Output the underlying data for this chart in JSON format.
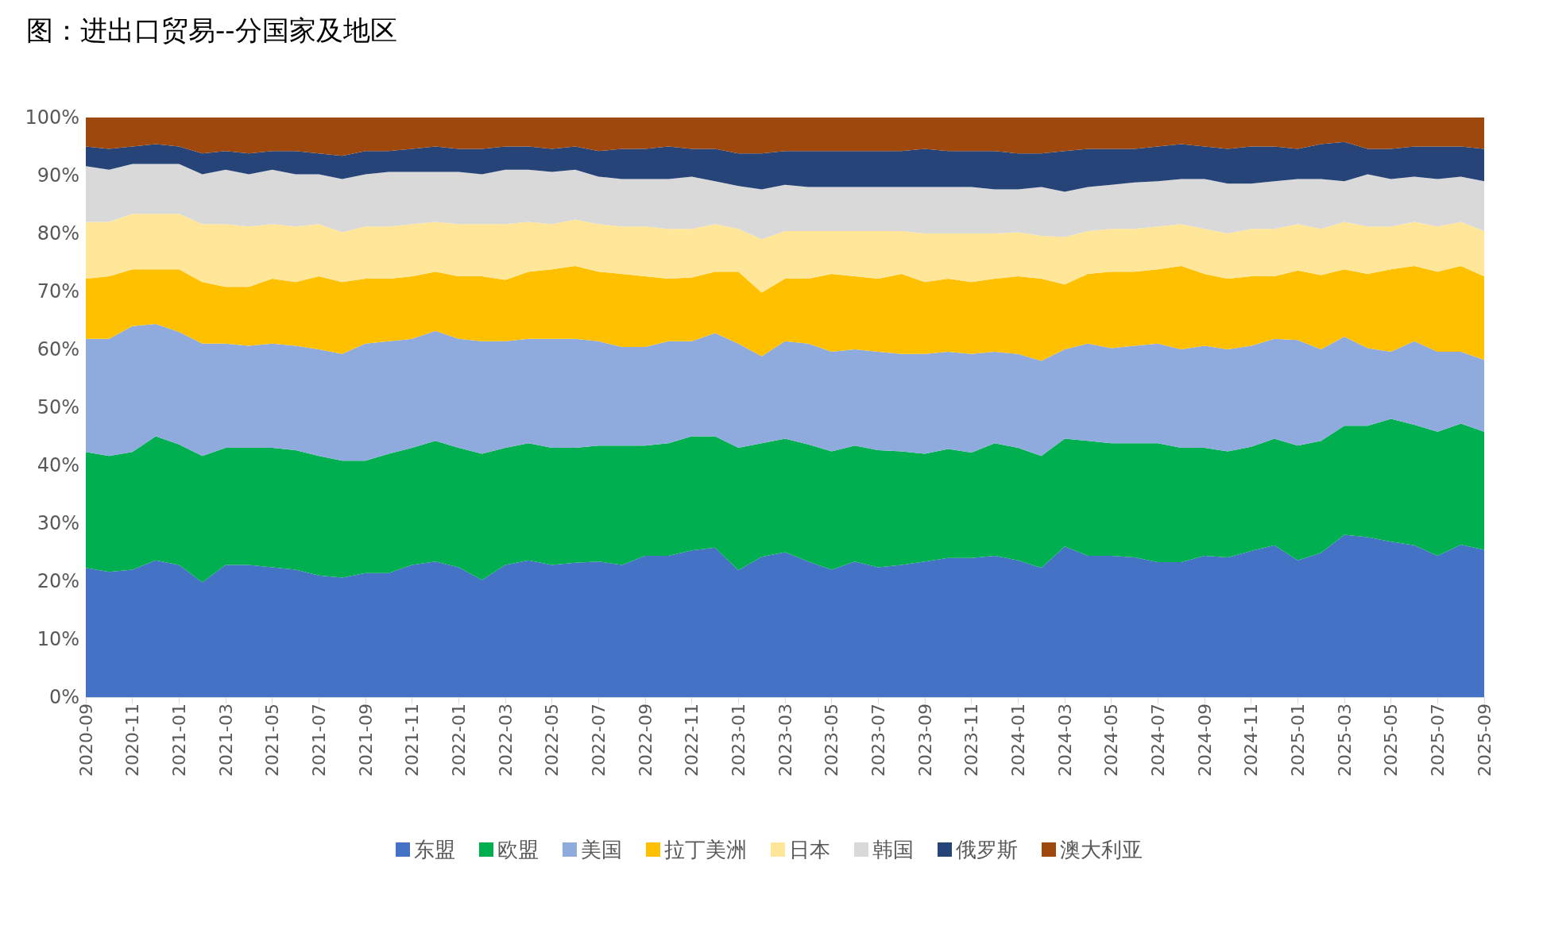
{
  "chart_data": {
    "type": "area",
    "title": "图：进出口贸易--分国家及地区",
    "stacked": true,
    "grid": false,
    "legend": "bottom",
    "categories": [
      "2020-09",
      null,
      "2020-11",
      null,
      "2021-01",
      null,
      "2021-03",
      null,
      "2021-05",
      null,
      "2021-07",
      null,
      "2021-09",
      null,
      "2021-11",
      null,
      "2022-01",
      null,
      "2022-03",
      null,
      "2022-05",
      null,
      "2022-07",
      null,
      "2022-09",
      null,
      "2022-11",
      null,
      "2023-01",
      null,
      "2023-03",
      null,
      "2023-05",
      null,
      "2023-07",
      null,
      "2023-09",
      null,
      "2023-11",
      null,
      "2024-01",
      null,
      "2024-03",
      null,
      "2024-05",
      null,
      "2024-07",
      null,
      "2024-09",
      null,
      "2024-11",
      null,
      "2025-01",
      null,
      "2025-03",
      null,
      "2025-05",
      null,
      "2025-07",
      null,
      "2025-09"
    ],
    "ylim": [
      0,
      100
    ],
    "yticks": [
      {
        "value": 0,
        "label": "0%"
      },
      {
        "value": 10,
        "label": "10%"
      },
      {
        "value": 20,
        "label": "20%"
      },
      {
        "value": 30,
        "label": "30%"
      },
      {
        "value": 40,
        "label": "40%"
      },
      {
        "value": 50,
        "label": "50%"
      },
      {
        "value": 60,
        "label": "60%"
      },
      {
        "value": 70,
        "label": "70%"
      },
      {
        "value": 80,
        "label": "80%"
      },
      {
        "value": 90,
        "label": "90%"
      },
      {
        "value": 100,
        "label": "100%"
      }
    ],
    "series": [
      {
        "name": "东盟",
        "color": "#4472c4",
        "values": [
          22.3,
          21.6,
          22,
          23.6,
          22.8,
          19.8,
          22.8,
          22.8,
          22.4,
          22,
          21,
          20.6,
          21.4,
          21.4,
          22.8,
          23.4,
          22.4,
          20.2,
          22.8,
          23.6,
          22.8,
          23.2,
          23.4,
          22.8,
          24.4,
          24.4,
          25.3,
          25.8,
          21.9,
          24.2,
          25,
          23.4,
          22,
          23.4,
          22.4,
          22.8,
          23.4,
          24,
          24,
          24.4,
          23.6,
          22.3,
          26,
          24.4,
          24.4,
          24.1,
          23.3,
          23.3,
          24.4,
          24.1,
          25.2,
          26.2,
          23.6,
          24.9,
          28,
          27.6,
          26.8,
          26.2,
          24.4,
          26.3,
          25.4
        ]
      },
      {
        "name": "欧盟",
        "color": "#00b050",
        "values": [
          20,
          20,
          20.3,
          21.4,
          20.8,
          21.8,
          20.2,
          20.2,
          20.6,
          20.6,
          20.6,
          20.2,
          19.4,
          20.6,
          20.2,
          20.8,
          20.6,
          21.8,
          20.2,
          20.2,
          20.2,
          19.8,
          20,
          20.6,
          19,
          19.4,
          19.7,
          19.2,
          21.1,
          19.6,
          19.6,
          20.2,
          20.4,
          20,
          20.2,
          19.6,
          18.6,
          18.8,
          18.2,
          19.4,
          19.4,
          19.3,
          18.6,
          19.8,
          19.4,
          19.7,
          20.5,
          19.7,
          18.6,
          18.3,
          18,
          18.4,
          19.8,
          19.3,
          18.8,
          19.2,
          21.2,
          20.8,
          21.4,
          20.9,
          20.4
        ]
      },
      {
        "name": "美国",
        "color": "#8faadc",
        "values": [
          19.5,
          20.2,
          21.7,
          19.4,
          19.4,
          19.4,
          18,
          17.6,
          18,
          18,
          18.4,
          18.4,
          20.2,
          19.4,
          18.8,
          19,
          18.8,
          19.4,
          18.4,
          18,
          18.8,
          18.8,
          18,
          17,
          17,
          17.6,
          16.4,
          17.8,
          18,
          15,
          16.8,
          17.4,
          17.2,
          16.6,
          17,
          16.8,
          17.2,
          16.8,
          17,
          15.8,
          16.2,
          16.4,
          15.4,
          16.8,
          16.4,
          16.8,
          17.2,
          17,
          17.6,
          17.6,
          17.4,
          17.2,
          18.2,
          15.8,
          15.4,
          13.4,
          11.6,
          14.4,
          13.8,
          12.4,
          12.4
        ]
      },
      {
        "name": "拉丁美洲",
        "color": "#ffc000",
        "values": [
          10.4,
          10.8,
          9.8,
          9.4,
          10.8,
          10.6,
          9.8,
          10.2,
          11.2,
          11,
          12.6,
          12.4,
          11.2,
          10.8,
          10.8,
          10.2,
          10.8,
          11.2,
          10.6,
          11.6,
          12,
          12.6,
          12,
          12.6,
          12.2,
          10.8,
          11,
          10.6,
          12.4,
          11,
          10.8,
          11.2,
          13.4,
          12.6,
          12.6,
          13.8,
          12.4,
          12.6,
          12.4,
          12.6,
          13.4,
          14.2,
          11.2,
          12,
          13.2,
          12.8,
          12.8,
          14.4,
          12.4,
          12.2,
          12,
          10.8,
          12,
          12.8,
          11.6,
          12.8,
          14.2,
          13,
          13.8,
          14.8,
          14.4
        ]
      },
      {
        "name": "日本",
        "color": "#ffe699",
        "values": [
          9.8,
          9.4,
          9.6,
          9.6,
          9.6,
          10,
          10.8,
          10.4,
          9.4,
          9.6,
          9,
          8.6,
          9,
          9,
          9,
          8.6,
          9,
          9,
          9.6,
          8.6,
          7.8,
          8,
          8.2,
          8.2,
          8.6,
          8.6,
          8.4,
          8.2,
          7.4,
          9.2,
          8.2,
          8.2,
          7.4,
          7.8,
          8.2,
          7.4,
          8.4,
          7.8,
          8.4,
          7.8,
          7.6,
          7.4,
          8.2,
          7.4,
          7.4,
          7.4,
          7.4,
          7.2,
          7.8,
          7.8,
          8.2,
          8.2,
          8,
          8,
          8.2,
          8.2,
          7.4,
          7.6,
          7.8,
          7.6,
          7.8
        ]
      },
      {
        "name": "韩国",
        "color": "#d9d9d9",
        "values": [
          9.6,
          9,
          8.6,
          8.6,
          8.6,
          8.6,
          9.4,
          9,
          9.4,
          9,
          8.6,
          9.2,
          9,
          9.4,
          9,
          8.6,
          9,
          8.6,
          9.4,
          9,
          9,
          8.6,
          8.2,
          8.2,
          8.2,
          8.6,
          9,
          7.4,
          7.4,
          8.6,
          8,
          7.6,
          7.6,
          7.6,
          7.6,
          7.6,
          8,
          8,
          8,
          7.6,
          7.4,
          8.4,
          7.8,
          7.6,
          7.6,
          8,
          7.8,
          7.8,
          8.6,
          8.6,
          7.8,
          8.2,
          7.8,
          8.6,
          7,
          9,
          8.2,
          7.8,
          8.2,
          7.8,
          8.6
        ]
      },
      {
        "name": "俄罗斯",
        "color": "#264478",
        "values": [
          3.4,
          3.6,
          3,
          3.4,
          3,
          3.6,
          3.2,
          3.6,
          3.2,
          4,
          3.6,
          4,
          4,
          3.6,
          4,
          4.4,
          4,
          4.4,
          4,
          4,
          4,
          4,
          4.4,
          5.2,
          5.2,
          5.6,
          4.8,
          5.6,
          5.6,
          6.2,
          5.8,
          6.2,
          6.2,
          6.2,
          6.2,
          6.2,
          6.6,
          6.2,
          6.2,
          6.6,
          6.2,
          5.8,
          7,
          6.6,
          6.2,
          5.8,
          6,
          6,
          5.6,
          6,
          6.4,
          6,
          5.2,
          6,
          6.8,
          4.4,
          5.2,
          5.2,
          5.6,
          5.2,
          5.6
        ]
      },
      {
        "name": "澳大利亚",
        "color": "#9e480e",
        "values": [
          5,
          5.4,
          5,
          4.6,
          5,
          6.2,
          5.8,
          6.2,
          5.8,
          5.8,
          6.2,
          6.6,
          5.8,
          5.8,
          5.4,
          5,
          5.4,
          5.4,
          5,
          5,
          5.4,
          5,
          5.8,
          5.4,
          5.4,
          5,
          5.4,
          5.4,
          6.2,
          6.2,
          5.8,
          5.8,
          5.8,
          5.8,
          5.8,
          5.8,
          5.4,
          5.8,
          5.8,
          5.8,
          6.2,
          6.2,
          5.8,
          5.4,
          5.4,
          5.4,
          5,
          4.6,
          5,
          5.4,
          5,
          5,
          5.4,
          4.6,
          4.2,
          5.4,
          5.4,
          5,
          5,
          5,
          5.4
        ]
      }
    ]
  }
}
